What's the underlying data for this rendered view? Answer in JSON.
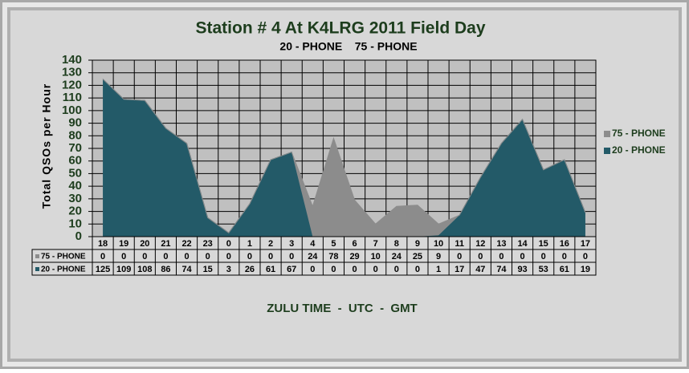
{
  "chart_data": {
    "type": "area",
    "stacked": true,
    "title": "Station # 4 At K4LRG 2011 Field Day",
    "subtitle": "20 - PHONE    75 - PHONE",
    "y_label": "Total QSOs per Hour",
    "x_label": "ZULU TIME  -  UTC  -  GMT",
    "categories": [
      "18",
      "19",
      "20",
      "21",
      "22",
      "23",
      "0",
      "1",
      "2",
      "3",
      "4",
      "5",
      "6",
      "7",
      "8",
      "9",
      "10",
      "11",
      "12",
      "13",
      "14",
      "15",
      "16",
      "17"
    ],
    "series": [
      {
        "name": "75 - PHONE",
        "color": "#8c8c8c",
        "values": [
          0,
          0,
          0,
          0,
          0,
          0,
          0,
          0,
          0,
          0,
          24,
          78,
          29,
          10,
          24,
          25,
          9,
          0,
          0,
          0,
          0,
          0,
          0,
          0
        ]
      },
      {
        "name": "20 - PHONE",
        "color": "#235a68",
        "values": [
          125,
          109,
          108,
          86,
          74,
          15,
          3,
          26,
          61,
          67,
          0,
          0,
          0,
          0,
          0,
          0,
          1,
          17,
          47,
          74,
          93,
          53,
          61,
          19
        ]
      }
    ],
    "ylim": [
      0,
      140
    ],
    "yticks": [
      0,
      10,
      20,
      30,
      40,
      50,
      60,
      70,
      80,
      90,
      100,
      110,
      120,
      130,
      140
    ],
    "grid": true,
    "legend": "right",
    "data_table": true
  }
}
